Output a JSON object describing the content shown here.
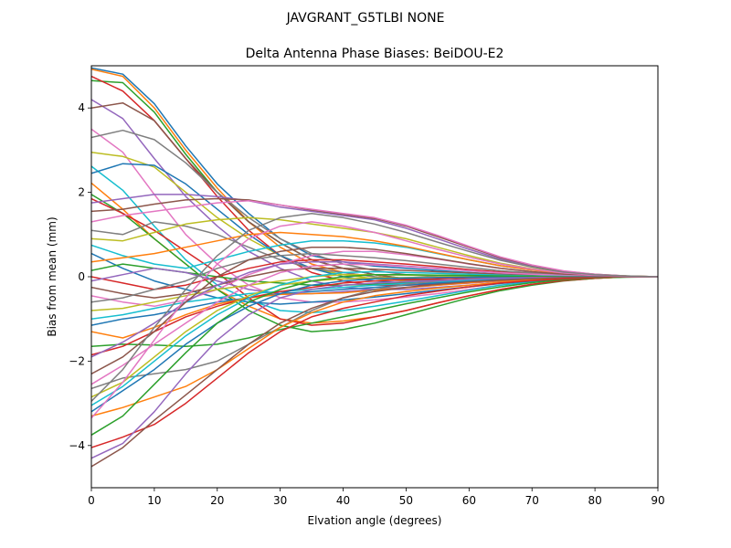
{
  "chart_data": {
    "type": "line",
    "suptitle": "JAVGRANT_G5TLBI NONE",
    "title": "Delta Antenna Phase Biases: BeiDOU-E2",
    "xlabel": "Elvation angle (degrees)",
    "ylabel": "Bias from mean (mm)",
    "xlim": [
      0,
      90
    ],
    "ylim": [
      -5,
      5
    ],
    "x_ticks": [
      "0",
      "10",
      "20",
      "30",
      "40",
      "50",
      "60",
      "70",
      "80",
      "90"
    ],
    "y_ticks": [
      "−4",
      "−2",
      "0",
      "2",
      "4"
    ],
    "legend": false,
    "grid": false,
    "x": [
      0,
      5,
      10,
      15,
      20,
      25,
      30,
      35,
      40,
      45,
      50,
      55,
      60,
      65,
      70,
      75,
      80,
      85,
      90
    ],
    "palette": [
      "#1f77b4",
      "#ff7f0e",
      "#2ca02c",
      "#d62728",
      "#9467bd",
      "#8c564b",
      "#e377c2",
      "#7f7f7f",
      "#bcbd22",
      "#17becf"
    ],
    "series": [
      {
        "values": [
          4.95,
          4.8,
          4.1,
          3.1,
          2.2,
          1.5,
          0.9,
          0.5,
          0.35,
          0.25,
          0.2,
          0.15,
          0.1,
          0.06,
          0.03,
          0.02,
          0.01,
          0.0,
          0.0
        ]
      },
      {
        "values": [
          4.92,
          4.75,
          4.0,
          3.0,
          2.1,
          1.3,
          0.7,
          0.3,
          0.1,
          0.0,
          -0.05,
          -0.08,
          -0.08,
          -0.06,
          -0.04,
          -0.02,
          -0.01,
          0.0,
          0.0
        ]
      },
      {
        "values": [
          4.65,
          4.6,
          3.9,
          2.9,
          2.0,
          1.3,
          0.8,
          0.4,
          0.2,
          0.05,
          -0.05,
          -0.08,
          -0.08,
          -0.06,
          -0.04,
          -0.02,
          -0.01,
          0.0,
          0.0
        ]
      },
      {
        "values": [
          4.75,
          4.4,
          3.7,
          2.8,
          1.9,
          1.1,
          0.5,
          0.1,
          -0.1,
          -0.2,
          -0.2,
          -0.18,
          -0.15,
          -0.1,
          -0.06,
          -0.03,
          -0.01,
          0.0,
          0.0
        ]
      },
      {
        "values": [
          4.2,
          3.75,
          2.8,
          1.9,
          1.2,
          0.6,
          0.2,
          -0.1,
          -0.25,
          -0.3,
          -0.3,
          -0.25,
          -0.2,
          -0.14,
          -0.08,
          -0.04,
          -0.02,
          0.0,
          0.0
        ]
      },
      {
        "values": [
          4.0,
          4.12,
          3.7,
          2.8,
          2.0,
          1.3,
          0.8,
          0.4,
          0.2,
          0.05,
          -0.05,
          -0.08,
          -0.08,
          -0.06,
          -0.04,
          -0.02,
          -0.01,
          0.0,
          0.0
        ]
      },
      {
        "values": [
          3.5,
          2.95,
          1.95,
          1.0,
          0.3,
          -0.2,
          -0.5,
          -0.6,
          -0.6,
          -0.55,
          -0.48,
          -0.4,
          -0.3,
          -0.2,
          -0.12,
          -0.06,
          -0.03,
          0.0,
          0.0
        ]
      },
      {
        "values": [
          3.3,
          3.47,
          3.25,
          2.7,
          2.0,
          1.4,
          0.9,
          0.55,
          0.3,
          0.15,
          0.05,
          0.0,
          -0.02,
          -0.02,
          -0.02,
          -0.01,
          0.0,
          0.0,
          0.0
        ]
      },
      {
        "values": [
          2.95,
          2.85,
          2.6,
          2.0,
          1.4,
          0.9,
          0.5,
          0.2,
          0.05,
          -0.05,
          -0.1,
          -0.1,
          -0.08,
          -0.06,
          -0.04,
          -0.02,
          -0.01,
          0.0,
          0.0
        ]
      },
      {
        "values": [
          2.62,
          2.05,
          1.2,
          0.4,
          -0.2,
          -0.55,
          -0.8,
          -0.85,
          -0.8,
          -0.7,
          -0.58,
          -0.45,
          -0.32,
          -0.2,
          -0.12,
          -0.06,
          -0.03,
          0.0,
          0.0
        ]
      },
      {
        "values": [
          2.45,
          2.68,
          2.64,
          2.2,
          1.6,
          1.0,
          0.5,
          0.2,
          0.0,
          -0.1,
          -0.15,
          -0.15,
          -0.12,
          -0.08,
          -0.05,
          -0.02,
          -0.01,
          0.0,
          0.0
        ]
      },
      {
        "values": [
          2.22,
          1.6,
          0.9,
          0.3,
          -0.3,
          -0.7,
          -1.0,
          -1.1,
          -1.05,
          -0.95,
          -0.8,
          -0.62,
          -0.45,
          -0.3,
          -0.18,
          -0.09,
          -0.04,
          0.0,
          0.0
        ]
      },
      {
        "values": [
          1.95,
          1.5,
          0.9,
          0.3,
          -0.3,
          -0.8,
          -1.15,
          -1.3,
          -1.25,
          -1.1,
          -0.9,
          -0.7,
          -0.5,
          -0.33,
          -0.2,
          -0.1,
          -0.04,
          0.0,
          0.0
        ]
      },
      {
        "values": [
          1.85,
          1.5,
          1.1,
          0.6,
          0.1,
          -0.5,
          -1.0,
          -1.15,
          -1.1,
          -0.95,
          -0.8,
          -0.62,
          -0.45,
          -0.3,
          -0.18,
          -0.09,
          -0.04,
          0.0,
          0.0
        ]
      },
      {
        "values": [
          1.75,
          1.85,
          1.95,
          1.95,
          1.9,
          1.8,
          1.65,
          1.55,
          1.45,
          1.35,
          1.15,
          0.9,
          0.65,
          0.42,
          0.25,
          0.12,
          0.05,
          0.02,
          0.0
        ]
      },
      {
        "values": [
          1.55,
          1.6,
          1.72,
          1.82,
          1.85,
          1.82,
          1.7,
          1.58,
          1.48,
          1.38,
          1.2,
          0.95,
          0.7,
          0.45,
          0.27,
          0.13,
          0.06,
          0.02,
          0.0
        ]
      },
      {
        "values": [
          1.3,
          1.45,
          1.55,
          1.65,
          1.75,
          1.8,
          1.7,
          1.6,
          1.5,
          1.4,
          1.22,
          0.98,
          0.72,
          0.47,
          0.28,
          0.14,
          0.06,
          0.02,
          0.0
        ]
      },
      {
        "values": [
          1.1,
          1.0,
          1.3,
          1.2,
          1.0,
          0.7,
          0.4,
          0.2,
          0.1,
          0.0,
          -0.08,
          -0.1,
          -0.1,
          -0.08,
          -0.05,
          -0.03,
          -0.01,
          0.0,
          0.0
        ]
      },
      {
        "values": [
          0.9,
          0.85,
          1.05,
          1.25,
          1.35,
          1.4,
          1.35,
          1.25,
          1.15,
          1.05,
          0.9,
          0.7,
          0.5,
          0.32,
          0.19,
          0.1,
          0.04,
          0.02,
          0.0
        ]
      },
      {
        "values": [
          0.75,
          0.5,
          0.3,
          0.2,
          0.4,
          0.6,
          0.75,
          0.85,
          0.85,
          0.8,
          0.7,
          0.55,
          0.4,
          0.26,
          0.16,
          0.08,
          0.03,
          0.01,
          0.0
        ]
      },
      {
        "values": [
          0.55,
          0.2,
          -0.1,
          -0.3,
          -0.5,
          -0.6,
          -0.65,
          -0.6,
          -0.55,
          -0.48,
          -0.4,
          -0.32,
          -0.24,
          -0.16,
          -0.1,
          -0.05,
          -0.02,
          0.0,
          0.0
        ]
      },
      {
        "values": [
          0.35,
          0.45,
          0.55,
          0.7,
          0.85,
          1.0,
          1.05,
          1.0,
          0.95,
          0.85,
          0.72,
          0.56,
          0.4,
          0.26,
          0.16,
          0.08,
          0.03,
          0.01,
          0.0
        ]
      },
      {
        "values": [
          0.15,
          0.3,
          0.2,
          0.1,
          0.0,
          -0.1,
          -0.15,
          -0.2,
          -0.2,
          -0.18,
          -0.15,
          -0.12,
          -0.09,
          -0.06,
          -0.04,
          -0.02,
          -0.01,
          0.0,
          0.0
        ]
      },
      {
        "values": [
          0.0,
          -0.15,
          -0.3,
          -0.2,
          0.0,
          0.2,
          0.35,
          0.4,
          0.4,
          0.35,
          0.3,
          0.24,
          0.17,
          0.11,
          0.07,
          0.03,
          0.01,
          0.0,
          0.0
        ]
      },
      {
        "values": [
          -0.1,
          0.05,
          0.2,
          0.1,
          -0.1,
          -0.3,
          -0.4,
          -0.4,
          -0.35,
          -0.3,
          -0.25,
          -0.2,
          -0.15,
          -0.1,
          -0.06,
          -0.03,
          -0.01,
          0.0,
          0.0
        ]
      },
      {
        "values": [
          -0.25,
          -0.4,
          -0.5,
          -0.4,
          -0.2,
          0.0,
          0.15,
          0.2,
          0.2,
          0.18,
          0.15,
          0.12,
          0.09,
          0.06,
          0.04,
          0.02,
          0.01,
          0.0,
          0.0
        ]
      },
      {
        "values": [
          -0.45,
          -0.6,
          -0.7,
          -0.55,
          -0.3,
          0.05,
          0.3,
          0.5,
          0.6,
          0.6,
          0.52,
          0.42,
          0.3,
          0.2,
          0.12,
          0.06,
          0.02,
          0.01,
          0.0
        ]
      },
      {
        "values": [
          -0.6,
          -0.5,
          -0.3,
          -0.1,
          0.2,
          0.4,
          0.5,
          0.55,
          0.5,
          0.45,
          0.38,
          0.3,
          0.22,
          0.14,
          0.09,
          0.04,
          0.02,
          0.0,
          0.0
        ]
      },
      {
        "values": [
          -0.8,
          -0.75,
          -0.6,
          -0.45,
          -0.3,
          -0.2,
          -0.1,
          0.0,
          0.05,
          0.05,
          0.04,
          0.03,
          0.02,
          0.01,
          0.0,
          0.0,
          0.0,
          0.0,
          0.0
        ]
      },
      {
        "values": [
          -1.0,
          -0.9,
          -0.75,
          -0.6,
          -0.5,
          -0.4,
          -0.35,
          -0.3,
          -0.25,
          -0.2,
          -0.16,
          -0.12,
          -0.09,
          -0.06,
          -0.04,
          -0.02,
          -0.01,
          0.0,
          0.0
        ]
      },
      {
        "values": [
          -1.15,
          -1.0,
          -0.9,
          -0.75,
          -0.6,
          -0.5,
          -0.4,
          -0.35,
          -0.3,
          -0.25,
          -0.2,
          -0.15,
          -0.11,
          -0.07,
          -0.04,
          -0.02,
          -0.01,
          0.0,
          0.0
        ]
      },
      {
        "values": [
          -1.3,
          -1.45,
          -1.2,
          -0.9,
          -0.65,
          -0.5,
          -0.42,
          -0.4,
          -0.38,
          -0.32,
          -0.26,
          -0.2,
          -0.14,
          -0.09,
          -0.06,
          -0.03,
          -0.01,
          0.0,
          0.0
        ]
      },
      {
        "values": [
          -1.65,
          -1.6,
          -1.62,
          -1.65,
          -1.6,
          -1.45,
          -1.25,
          -1.1,
          -0.95,
          -0.8,
          -0.64,
          -0.5,
          -0.36,
          -0.24,
          -0.14,
          -0.07,
          -0.03,
          -0.01,
          0.0
        ]
      },
      {
        "values": [
          -1.85,
          -1.65,
          -1.3,
          -0.95,
          -0.7,
          -0.5,
          -0.35,
          -0.25,
          -0.15,
          -0.1,
          -0.07,
          -0.05,
          -0.03,
          -0.02,
          -0.01,
          0.0,
          0.0,
          0.0,
          0.0
        ]
      },
      {
        "values": [
          -1.9,
          -1.55,
          -1.1,
          -0.6,
          -0.2,
          0.1,
          0.3,
          0.35,
          0.35,
          0.3,
          0.25,
          0.2,
          0.14,
          0.09,
          0.06,
          0.03,
          0.01,
          0.0,
          0.0
        ]
      },
      {
        "values": [
          -2.3,
          -1.9,
          -1.3,
          -0.6,
          0.0,
          0.4,
          0.6,
          0.7,
          0.7,
          0.65,
          0.55,
          0.43,
          0.31,
          0.2,
          0.12,
          0.06,
          0.02,
          0.01,
          0.0
        ]
      },
      {
        "values": [
          -2.55,
          -2.1,
          -1.6,
          -1.1,
          -0.6,
          -0.2,
          0.1,
          0.25,
          0.3,
          0.28,
          0.24,
          0.19,
          0.14,
          0.09,
          0.06,
          0.03,
          0.01,
          0.0,
          0.0
        ]
      },
      {
        "values": [
          -2.65,
          -2.4,
          -2.3,
          -2.2,
          -2.0,
          -1.6,
          -1.2,
          -0.8,
          -0.5,
          -0.3,
          -0.18,
          -0.1,
          -0.05,
          -0.03,
          -0.01,
          0.0,
          0.0,
          0.0,
          0.0
        ]
      },
      {
        "values": [
          -2.85,
          -2.5,
          -1.9,
          -1.3,
          -0.8,
          -0.45,
          -0.2,
          -0.1,
          -0.05,
          -0.03,
          -0.02,
          -0.01,
          0.0,
          0.0,
          0.0,
          0.0,
          0.0,
          0.0,
          0.0
        ]
      },
      {
        "values": [
          -3.05,
          -2.6,
          -2.0,
          -1.4,
          -0.9,
          -0.5,
          -0.2,
          0.0,
          0.1,
          0.12,
          0.1,
          0.08,
          0.06,
          0.04,
          0.02,
          0.01,
          0.0,
          0.0,
          0.0
        ]
      },
      {
        "values": [
          -3.2,
          -2.7,
          -2.2,
          -1.6,
          -1.1,
          -0.7,
          -0.4,
          -0.2,
          -0.1,
          -0.05,
          -0.03,
          -0.02,
          -0.01,
          0.0,
          0.0,
          0.0,
          0.0,
          0.0,
          0.0
        ]
      },
      {
        "values": [
          -3.3,
          -3.1,
          -2.85,
          -2.6,
          -2.2,
          -1.7,
          -1.2,
          -0.85,
          -0.6,
          -0.45,
          -0.35,
          -0.27,
          -0.2,
          -0.13,
          -0.08,
          -0.04,
          -0.02,
          0.0,
          0.0
        ]
      },
      {
        "values": [
          -3.75,
          -3.3,
          -2.55,
          -1.8,
          -1.1,
          -0.6,
          -0.3,
          -0.1,
          0.0,
          0.05,
          0.05,
          0.04,
          0.03,
          0.02,
          0.01,
          0.0,
          0.0,
          0.0,
          0.0
        ]
      },
      {
        "values": [
          -4.05,
          -3.8,
          -3.5,
          -3.0,
          -2.4,
          -1.8,
          -1.3,
          -0.95,
          -0.75,
          -0.6,
          -0.45,
          -0.34,
          -0.24,
          -0.15,
          -0.09,
          -0.05,
          -0.02,
          0.0,
          0.0
        ]
      },
      {
        "values": [
          -4.3,
          -3.95,
          -3.2,
          -2.3,
          -1.5,
          -0.9,
          -0.5,
          -0.3,
          -0.2,
          -0.15,
          -0.12,
          -0.09,
          -0.06,
          -0.04,
          -0.02,
          -0.01,
          0.0,
          0.0,
          0.0
        ]
      },
      {
        "values": [
          -4.5,
          -4.05,
          -3.4,
          -2.8,
          -2.2,
          -1.6,
          -1.1,
          -0.75,
          -0.5,
          -0.35,
          -0.25,
          -0.18,
          -0.12,
          -0.08,
          -0.05,
          -0.02,
          -0.01,
          0.0,
          0.0
        ]
      },
      {
        "values": [
          -3.35,
          -2.5,
          -1.5,
          -0.5,
          0.3,
          0.9,
          1.2,
          1.3,
          1.2,
          1.05,
          0.85,
          0.65,
          0.46,
          0.3,
          0.18,
          0.09,
          0.04,
          0.01,
          0.0
        ]
      },
      {
        "values": [
          -2.95,
          -2.2,
          -1.2,
          -0.3,
          0.5,
          1.1,
          1.4,
          1.5,
          1.4,
          1.25,
          1.05,
          0.82,
          0.6,
          0.39,
          0.23,
          0.11,
          0.05,
          0.02,
          0.0
        ]
      }
    ]
  }
}
